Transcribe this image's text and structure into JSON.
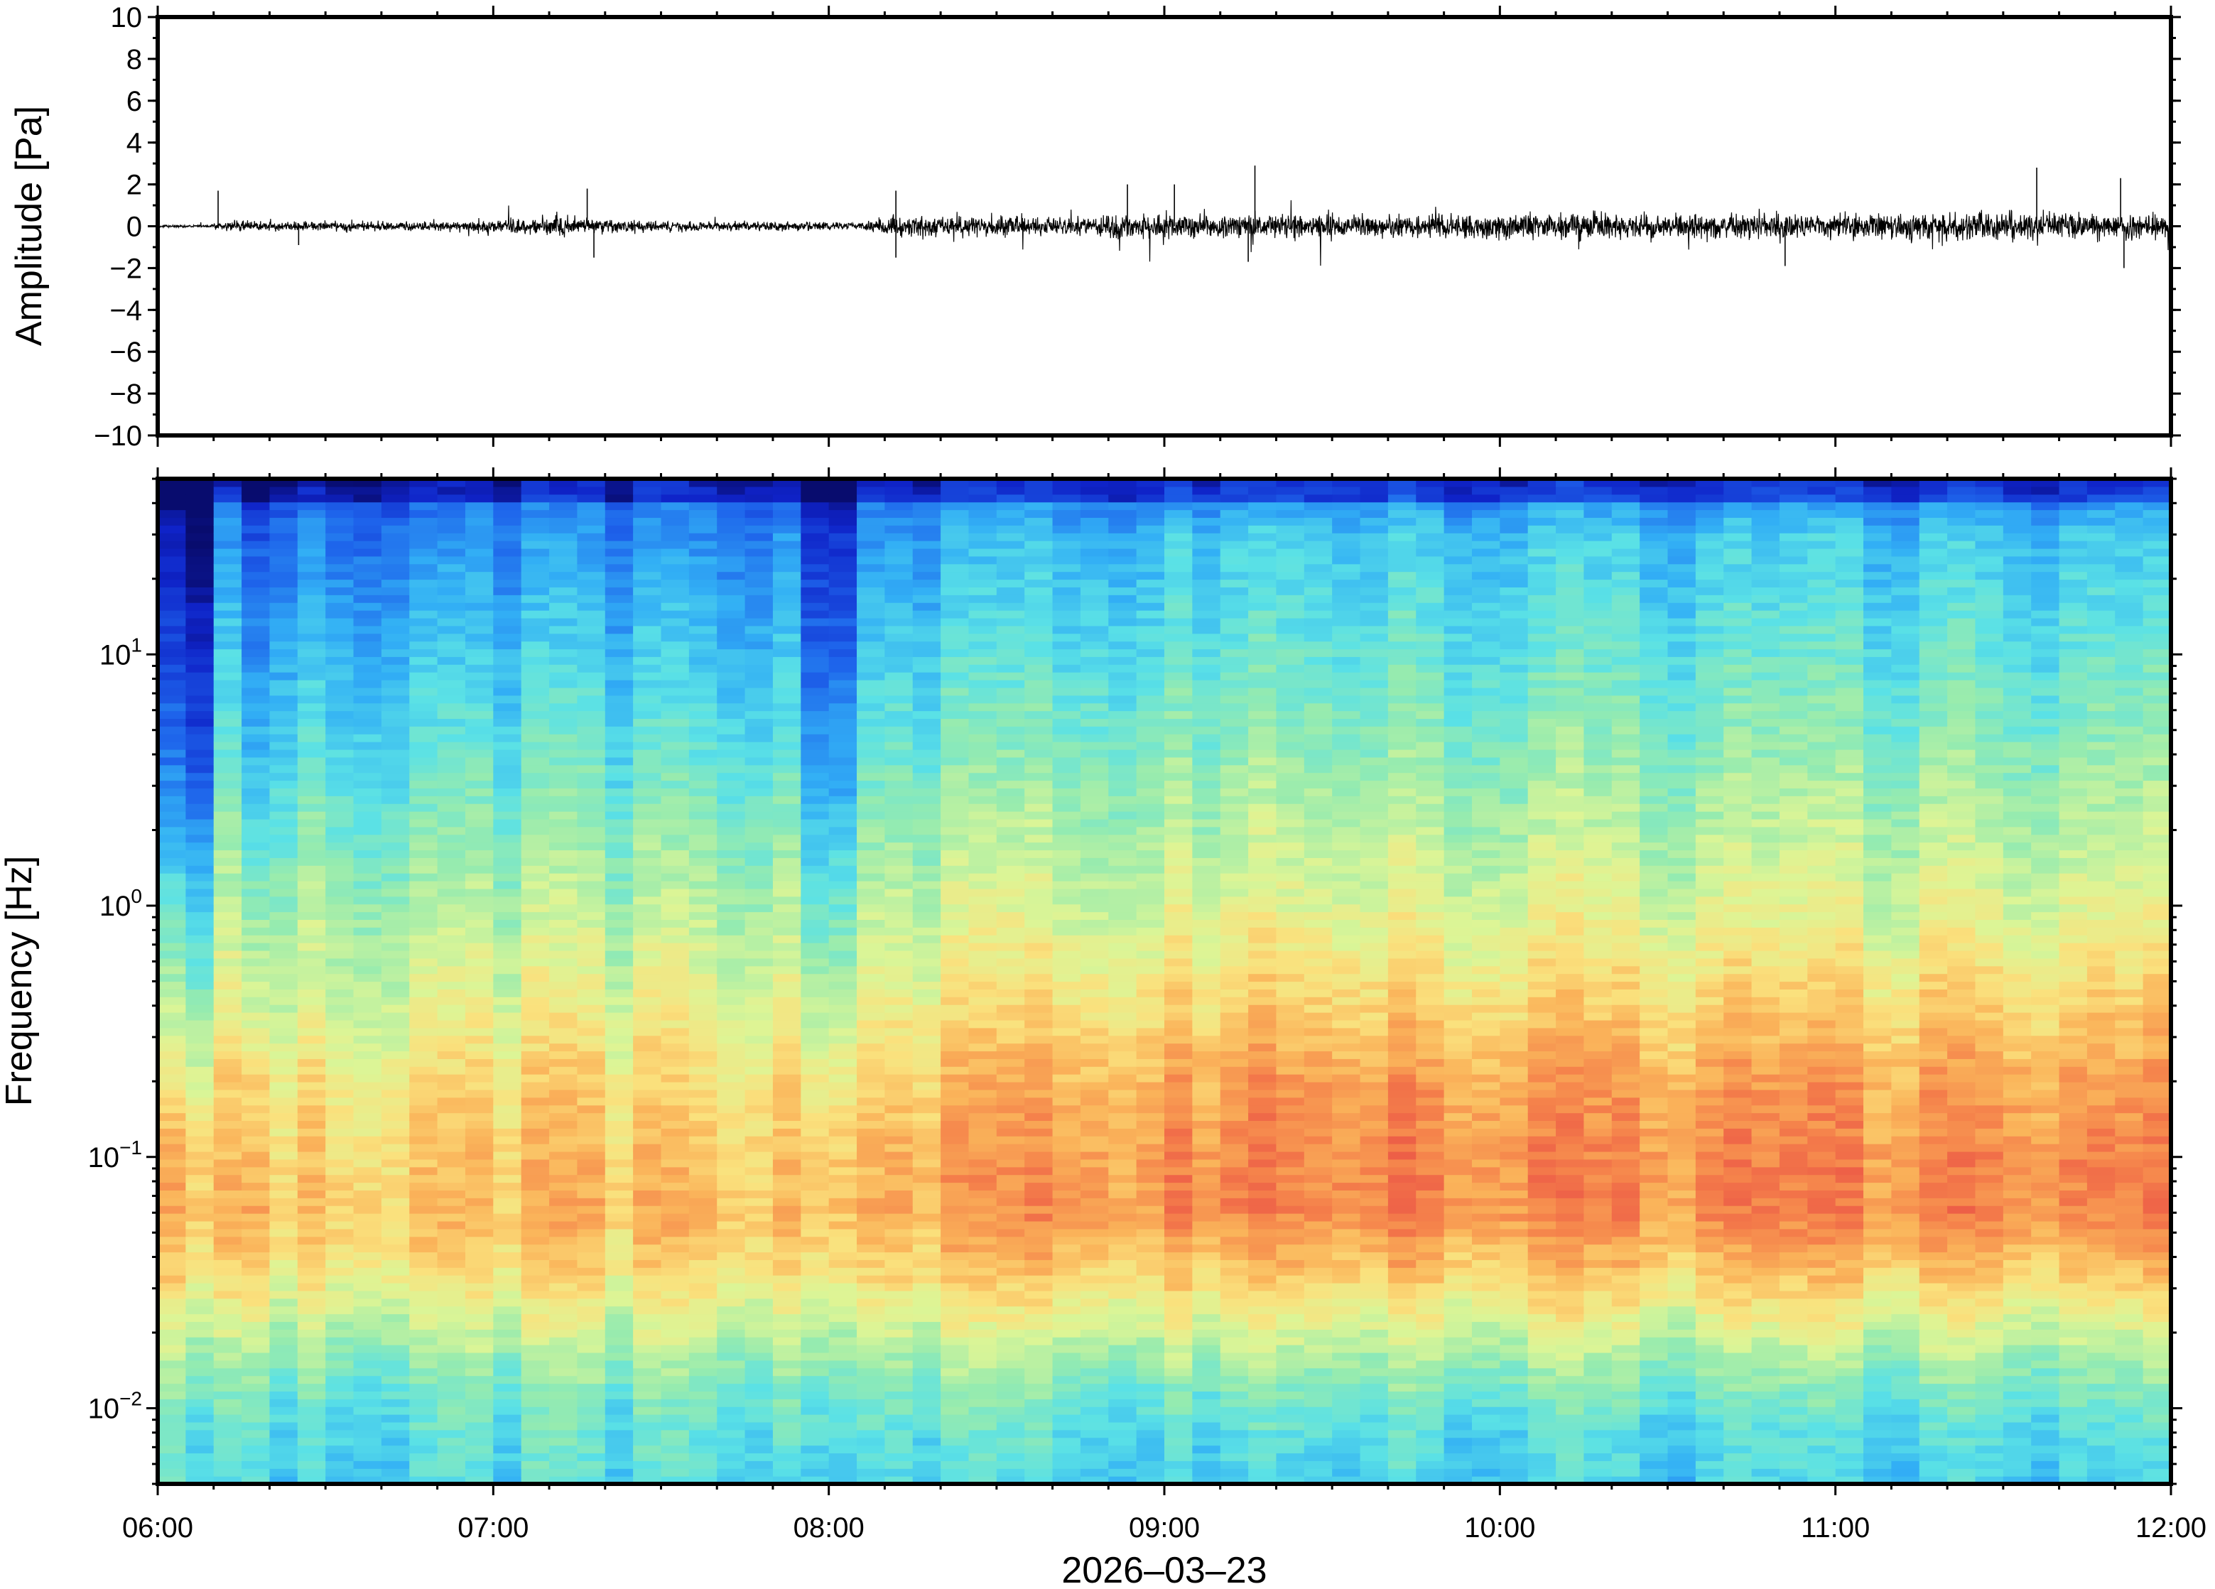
{
  "chart_data": [
    {
      "type": "line",
      "name": "waveform-panel",
      "ylabel": "Amplitude [Pa]",
      "ylim": [
        -10,
        10
      ],
      "yticks": [
        10,
        8,
        6,
        4,
        2,
        0,
        -2,
        -4,
        -6,
        -8,
        -10
      ],
      "ytick_labels": [
        "10",
        "8",
        "6",
        "4",
        "2",
        "0",
        "−2",
        "−4",
        "−6",
        "−8",
        "−10"
      ],
      "xlim": [
        "06:00",
        "12:00"
      ],
      "grid": false,
      "series_color": "#000000",
      "envelope_x_hours": [
        6.0,
        6.15,
        6.2,
        6.4,
        6.6,
        6.8,
        7.0,
        7.2,
        7.4,
        7.6,
        7.8,
        8.0,
        8.1,
        8.2,
        8.4,
        8.6,
        8.8,
        9.0,
        9.2,
        9.4,
        9.6,
        9.8,
        10.0,
        10.2,
        10.4,
        10.6,
        10.8,
        11.0,
        11.2,
        11.4,
        11.6,
        11.8,
        12.0
      ],
      "envelope_amplitude": [
        0.1,
        0.1,
        0.4,
        0.35,
        0.4,
        0.35,
        0.6,
        0.75,
        0.45,
        0.35,
        0.35,
        0.3,
        0.3,
        0.8,
        0.75,
        0.7,
        0.8,
        0.95,
        0.9,
        0.95,
        0.9,
        0.9,
        0.95,
        1.0,
        1.0,
        0.95,
        1.0,
        1.05,
        1.0,
        1.05,
        1.05,
        1.0,
        1.0
      ],
      "peaks": [
        {
          "t": 6.18,
          "v": 1.7
        },
        {
          "t": 6.42,
          "v": -0.9
        },
        {
          "t": 7.28,
          "v": 1.8
        },
        {
          "t": 7.3,
          "v": -1.5
        },
        {
          "t": 8.2,
          "v": 1.7
        },
        {
          "t": 8.2,
          "v": -1.5
        },
        {
          "t": 8.89,
          "v": 2.0
        },
        {
          "t": 9.03,
          "v": 2.0
        },
        {
          "t": 9.27,
          "v": 2.9
        },
        {
          "t": 9.25,
          "v": -1.7
        },
        {
          "t": 10.85,
          "v": -1.9
        },
        {
          "t": 11.6,
          "v": 2.8
        },
        {
          "t": 11.85,
          "v": 2.3
        },
        {
          "t": 11.86,
          "v": -2.0
        }
      ]
    },
    {
      "type": "heatmap",
      "name": "spectrogram-panel",
      "ylabel": "Frequency [Hz]",
      "xlabel": "2026–03–23",
      "y_scale": "log",
      "ylim": [
        0.005,
        50
      ],
      "yticks": [
        0.01,
        0.1,
        1,
        10
      ],
      "ytick_labels": [
        {
          "base": "10",
          "exp": "−2"
        },
        {
          "base": "10",
          "exp": "−1"
        },
        {
          "base": "10",
          "exp": "0"
        },
        {
          "base": "10",
          "exp": "1"
        }
      ],
      "x": [
        "06:00",
        "07:00",
        "08:00",
        "09:00",
        "10:00",
        "11:00",
        "12:00"
      ],
      "xlim": [
        "06:00",
        "12:00"
      ],
      "colormap": "jet-like (blue low, red high)",
      "grid": false,
      "level_profile_freq_hz": [
        0.005,
        0.008,
        0.012,
        0.02,
        0.035,
        0.06,
        0.1,
        0.2,
        0.4,
        1,
        3,
        10,
        30,
        50
      ],
      "level_profile_morning": [
        0.42,
        0.45,
        0.5,
        0.6,
        0.72,
        0.78,
        0.76,
        0.72,
        0.65,
        0.58,
        0.48,
        0.38,
        0.28,
        0.18
      ],
      "level_profile_late": [
        0.4,
        0.43,
        0.5,
        0.62,
        0.76,
        0.86,
        0.86,
        0.82,
        0.74,
        0.64,
        0.55,
        0.46,
        0.38,
        0.22
      ],
      "quiet_windows": [
        {
          "start": "06:00",
          "end": "06:10",
          "shift": -0.25
        },
        {
          "start": "06:16",
          "end": "06:22",
          "shift": -0.12
        },
        {
          "start": "07:55",
          "end": "08:03",
          "shift": -0.14
        }
      ]
    }
  ]
}
